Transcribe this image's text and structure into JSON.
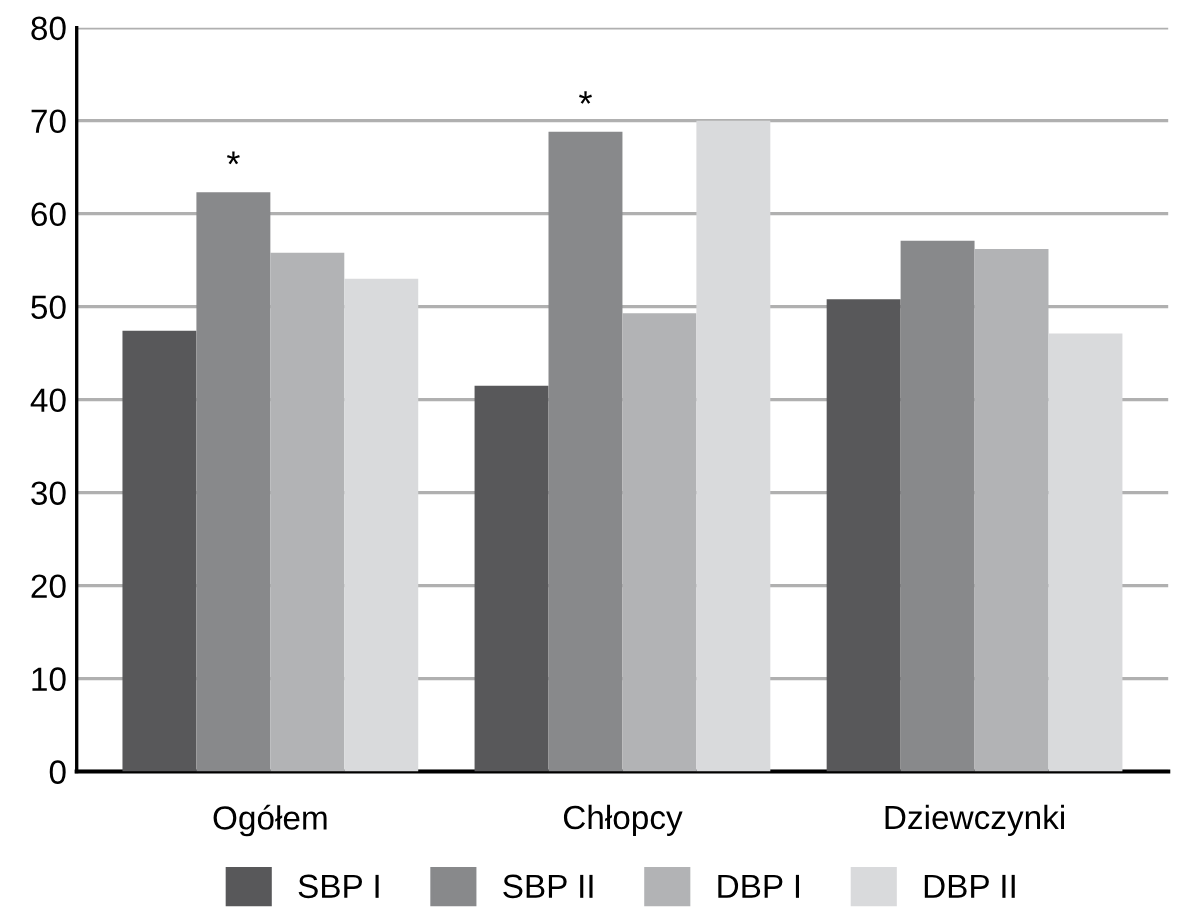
{
  "chart_data": {
    "type": "bar",
    "categories": [
      "Ogółem",
      "Chłopcy",
      "Dziewczynki"
    ],
    "series": [
      {
        "name": "SBP I",
        "color": "#58585a",
        "values": [
          47.4,
          41.5,
          50.8
        ]
      },
      {
        "name": "SBP II",
        "color": "#88898b",
        "values": [
          62.3,
          68.8,
          57.1
        ]
      },
      {
        "name": "DBP I",
        "color": "#b2b3b5",
        "values": [
          55.8,
          49.3,
          56.2
        ]
      },
      {
        "name": "DBP II",
        "color": "#d9dadc",
        "values": [
          53.0,
          70.0,
          47.1
        ]
      }
    ],
    "annotations": [
      {
        "text": "*",
        "x": "Ogółem",
        "y": 62.3
      },
      {
        "text": "*",
        "x": "Chłopcy",
        "y": 68.8
      }
    ],
    "ylim": [
      0,
      80
    ],
    "yticks": [
      0,
      10,
      20,
      30,
      40,
      50,
      60,
      70,
      80
    ],
    "grid": "y",
    "legend": "bottom"
  }
}
